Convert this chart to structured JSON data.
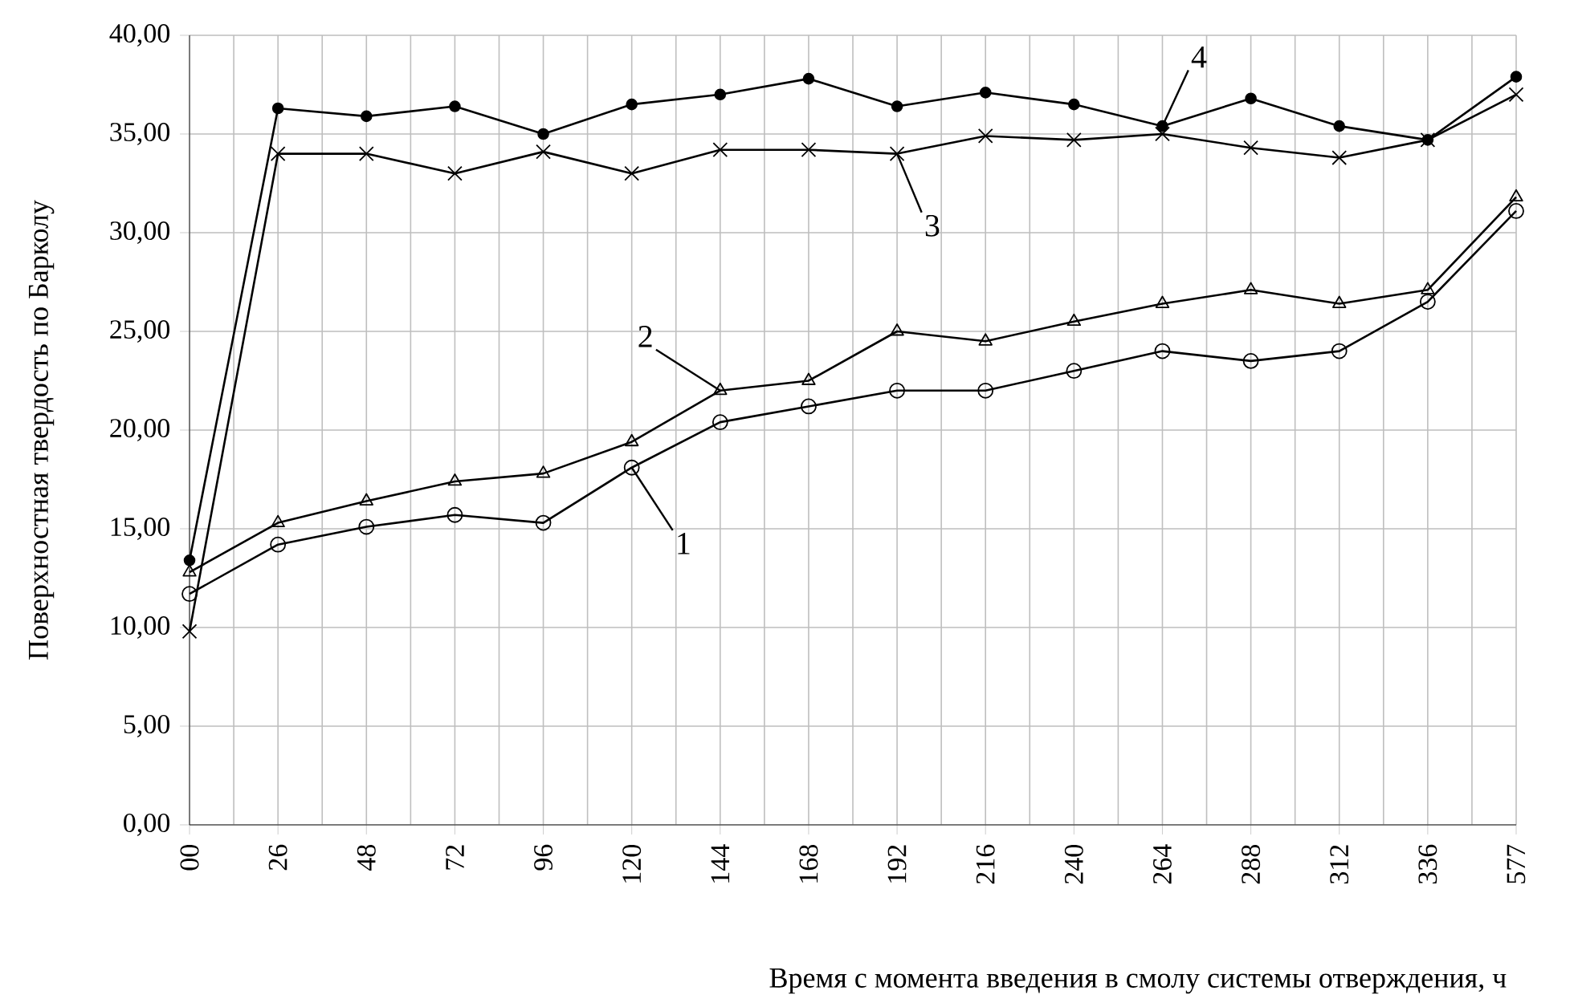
{
  "chart_data": {
    "type": "line",
    "xlabel": "Время с момента введения в смолу системы отверждения, ч",
    "ylabel": "Поверхностная твердость по Барколу",
    "categories": [
      "00",
      "26",
      "48",
      "72",
      "96",
      "120",
      "144",
      "168",
      "192",
      "216",
      "240",
      "264",
      "288",
      "312",
      "336",
      "577"
    ],
    "series": [
      {
        "color": "#000000",
        "marker": "circle",
        "values": [
          11.7,
          14.2,
          15.1,
          15.7,
          15.3,
          18.1,
          20.4,
          21.2,
          22.0,
          22.0,
          23.0,
          24.0,
          23.5,
          24.0,
          26.5,
          31.1
        ]
      },
      {
        "color": "#000000",
        "marker": "triangle",
        "values": [
          12.8,
          15.3,
          16.4,
          17.4,
          17.8,
          19.4,
          22.0,
          22.5,
          25.0,
          24.5,
          25.5,
          26.4,
          27.1,
          26.4,
          27.1,
          31.8
        ]
      },
      {
        "color": "#000000",
        "marker": "cross",
        "values": [
          9.8,
          34.0,
          34.0,
          33.0,
          34.1,
          33.0,
          34.2,
          34.2,
          34.0,
          34.9,
          34.7,
          35.0,
          34.3,
          33.8,
          34.7,
          37.0
        ]
      },
      {
        "color": "#000000",
        "marker": "filled circle",
        "values": [
          13.4,
          36.3,
          35.9,
          36.4,
          35.0,
          36.5,
          37.0,
          37.8,
          36.4,
          37.1,
          36.5,
          35.4,
          36.8,
          35.4,
          34.7,
          37.9
        ]
      }
    ],
    "ylim": [
      0,
      40
    ],
    "yticks": [
      {
        "value": 0,
        "label": "0,00"
      },
      {
        "value": 5,
        "label": "5,00"
      },
      {
        "value": 10,
        "label": "10,00"
      },
      {
        "value": 15,
        "label": "15,00"
      },
      {
        "value": 20,
        "label": "20,00"
      },
      {
        "value": 25,
        "label": "25,00"
      },
      {
        "value": 30,
        "label": "30,00"
      },
      {
        "value": 35,
        "label": "35,00"
      },
      {
        "value": 40,
        "label": "40,00"
      }
    ],
    "grid": true,
    "line_style": "solid",
    "annotations": [
      {
        "text": "1",
        "x": "120",
        "y": 18.1
      },
      {
        "text": "2",
        "x": "144",
        "y": 22.0
      },
      {
        "text": "3",
        "x": "192",
        "y": 34.0
      },
      {
        "text": "4",
        "x": "264",
        "y": 35.4
      }
    ]
  }
}
